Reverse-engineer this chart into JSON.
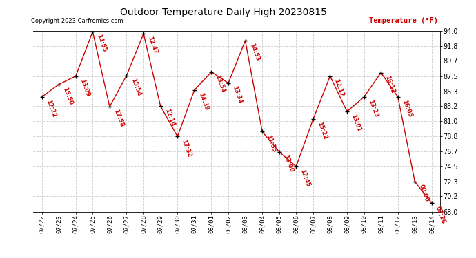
{
  "title": "Outdoor Temperature Daily High 20230815",
  "ylabel": "Temperature (°F)",
  "copyright": "Copyright 2023 Carfromics.com",
  "background_color": "#ffffff",
  "grid_color": "#cccccc",
  "line_color": "#cc0000",
  "point_color": "#000000",
  "label_color": "#cc0000",
  "dates": [
    "07/22",
    "07/23",
    "07/24",
    "07/25",
    "07/26",
    "07/27",
    "07/28",
    "07/29",
    "07/30",
    "07/31",
    "08/01",
    "08/02",
    "08/03",
    "08/04",
    "08/05",
    "08/06",
    "08/07",
    "08/08",
    "08/09",
    "08/10",
    "08/11",
    "08/12",
    "08/13",
    "08/14"
  ],
  "temperatures": [
    84.5,
    86.3,
    87.5,
    93.9,
    83.1,
    87.6,
    93.6,
    83.2,
    78.8,
    85.5,
    88.1,
    86.5,
    92.6,
    79.5,
    76.6,
    74.5,
    81.3,
    87.5,
    82.4,
    84.5,
    88.0,
    84.5,
    72.3,
    69.2
  ],
  "time_labels": [
    "12:22",
    "15:50",
    "13:09",
    "14:55",
    "17:58",
    "15:54",
    "12:47",
    "12:14",
    "17:32",
    "14:39",
    "13:54",
    "13:34",
    "14:53",
    "11:35",
    "13:00",
    "12:45",
    "15:22",
    "12:12",
    "13:01",
    "13:23",
    "16:12",
    "16:05",
    "00:00",
    "07:26"
  ],
  "ylim": [
    68.0,
    94.0
  ],
  "yticks": [
    68.0,
    70.2,
    72.3,
    74.5,
    76.7,
    78.8,
    81.0,
    83.2,
    85.3,
    87.5,
    89.7,
    91.8,
    94.0
  ]
}
